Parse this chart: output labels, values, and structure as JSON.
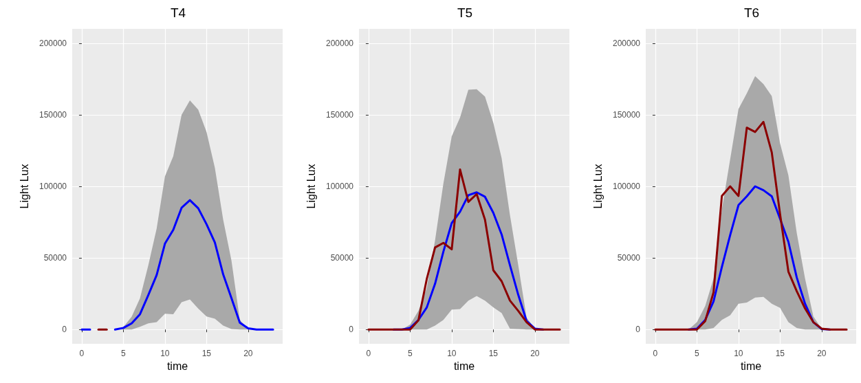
{
  "chart_data": [
    {
      "type": "line",
      "title": "T4",
      "xlabel": "time",
      "ylabel": "Light Lux",
      "x": [
        0,
        1,
        2,
        3,
        4,
        5,
        6,
        7,
        8,
        9,
        10,
        11,
        12,
        13,
        14,
        15,
        16,
        17,
        18,
        19,
        20,
        21,
        22,
        23
      ],
      "xlim": [
        -1.15,
        24.15
      ],
      "xticks": [
        0,
        5,
        10,
        15,
        20
      ],
      "ylim": [
        -10000,
        210000
      ],
      "yticks": [
        0,
        50000,
        100000,
        150000,
        200000
      ],
      "grid": true,
      "line_style": "solid",
      "marker": "none",
      "series": [
        {
          "color": "#8b0000",
          "values": [
            null,
            null,
            0,
            0,
            null,
            null,
            null,
            null,
            null,
            null,
            null,
            null,
            null,
            null,
            null,
            null,
            null,
            null,
            null,
            null,
            null,
            null,
            null,
            null
          ]
        },
        {
          "color": "#0000ff",
          "values": [
            0,
            0,
            null,
            null,
            0,
            1100,
            4300,
            10700,
            24000,
            38000,
            60000,
            69600,
            85000,
            90300,
            84700,
            73500,
            60800,
            38500,
            21800,
            4800,
            800,
            0,
            0,
            0
          ],
          "lower": [
            0,
            0,
            0,
            0,
            0,
            0,
            0,
            1900,
            4300,
            5100,
            11000,
            10700,
            19100,
            21000,
            14600,
            9100,
            7500,
            2700,
            300,
            0,
            0,
            0,
            0,
            0
          ],
          "upper": [
            0,
            0,
            0,
            0,
            0,
            1600,
            9000,
            21800,
            44900,
            70400,
            107000,
            121000,
            150000,
            160000,
            153500,
            138000,
            113000,
            76700,
            48000,
            6700,
            300,
            0,
            0,
            0
          ]
        }
      ]
    },
    {
      "type": "line",
      "title": "T5",
      "xlabel": "time",
      "ylabel": "Light Lux",
      "x": [
        0,
        1,
        2,
        3,
        4,
        5,
        6,
        7,
        8,
        9,
        10,
        11,
        12,
        13,
        14,
        15,
        16,
        17,
        18,
        19,
        20,
        21,
        22,
        23
      ],
      "xlim": [
        -1.15,
        24.15
      ],
      "xticks": [
        0,
        5,
        10,
        15,
        20
      ],
      "ylim": [
        -10000,
        210000
      ],
      "yticks": [
        0,
        50000,
        100000,
        150000,
        200000
      ],
      "grid": true,
      "line_style": "solid",
      "marker": "none",
      "series": [
        {
          "color": "#0000ff",
          "values": [
            null,
            null,
            null,
            0,
            0,
            1100,
            6700,
            15400,
            32000,
            54400,
            74300,
            82300,
            93800,
            95800,
            92700,
            81500,
            66400,
            44900,
            24200,
            5900,
            600,
            0,
            null,
            null
          ],
          "lower": [
            0,
            0,
            0,
            0,
            0,
            0,
            0,
            0,
            2700,
            6700,
            13900,
            14300,
            20200,
            23400,
            20200,
            15400,
            11500,
            600,
            300,
            0,
            0,
            0,
            0,
            0
          ],
          "upper": [
            0,
            0,
            0,
            0,
            0,
            3500,
            13000,
            29000,
            62400,
            102000,
            135000,
            148000,
            167500,
            167800,
            162700,
            144400,
            119700,
            79900,
            44900,
            8300,
            600,
            0,
            0,
            0
          ]
        },
        {
          "color": "#8b0000",
          "values": [
            0,
            0,
            0,
            0,
            0,
            0,
            6400,
            35300,
            57300,
            60500,
            56000,
            111800,
            89100,
            94600,
            76700,
            41400,
            33700,
            20200,
            13000,
            5100,
            0,
            0,
            0,
            0
          ]
        }
      ]
    },
    {
      "type": "line",
      "title": "T6",
      "xlabel": "time",
      "ylabel": "Light Lux",
      "x": [
        0,
        1,
        2,
        3,
        4,
        5,
        6,
        7,
        8,
        9,
        10,
        11,
        12,
        13,
        14,
        15,
        16,
        17,
        18,
        19,
        20,
        21,
        22,
        23
      ],
      "xlim": [
        -1.15,
        24.15
      ],
      "xticks": [
        0,
        5,
        10,
        15,
        20
      ],
      "ylim": [
        -10000,
        210000
      ],
      "yticks": [
        0,
        50000,
        100000,
        150000,
        200000
      ],
      "grid": true,
      "line_style": "solid",
      "marker": "none",
      "series": [
        {
          "color": "#0000ff",
          "values": [
            null,
            null,
            null,
            null,
            0,
            600,
            6700,
            19600,
            43600,
            66000,
            86900,
            93000,
            100000,
            97300,
            93000,
            77300,
            61200,
            36400,
            18000,
            5100,
            300,
            0,
            null,
            null
          ],
          "lower": [
            0,
            0,
            0,
            0,
            0,
            0,
            0,
            1100,
            6700,
            9900,
            18000,
            18800,
            22300,
            22800,
            18000,
            15100,
            5100,
            1100,
            0,
            0,
            0,
            0,
            0,
            0
          ],
          "upper": [
            0,
            0,
            0,
            0,
            0,
            5100,
            16400,
            35600,
            83700,
            119000,
            154000,
            165000,
            177000,
            171500,
            163000,
            130000,
            107700,
            67600,
            35600,
            9100,
            600,
            0,
            0,
            0
          ]
        },
        {
          "color": "#8b0000",
          "values": [
            0,
            0,
            0,
            0,
            0,
            0,
            5900,
            26000,
            93300,
            100000,
            93300,
            141000,
            138000,
            145000,
            123700,
            80500,
            40400,
            26800,
            14700,
            5100,
            600,
            0,
            0,
            0
          ]
        }
      ]
    }
  ]
}
